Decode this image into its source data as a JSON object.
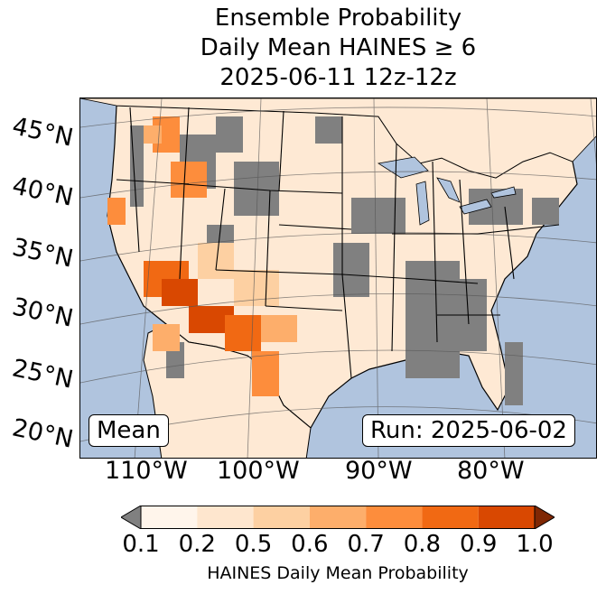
{
  "title": {
    "line1": "Ensemble Probability",
    "line2": "Daily Mean HAINES ≥ 6",
    "line3": "2025-06-11 12z-12z"
  },
  "map": {
    "projection": "lambert-conformal",
    "extent": {
      "lon_min": -120,
      "lon_max": -73,
      "lat_min": 22,
      "lat_max": 50
    },
    "colors": {
      "ocean": "#b0c4de",
      "land_low": "#808080",
      "background_land": "#fee9d4",
      "border": "#000000",
      "lakes": "#b0c4de"
    },
    "lat_labels": [
      "45°N",
      "40°N",
      "35°N",
      "30°N",
      "25°N",
      "20°N"
    ],
    "lon_labels": [
      "110°W",
      "100°W",
      "90°W",
      "80°W"
    ],
    "stat_label": "Mean",
    "run_label": "Run: 2025-06-02"
  },
  "colorbar": {
    "ticks": [
      "0.1",
      "0.2",
      "0.5",
      "0.6",
      "0.7",
      "0.8",
      "0.9",
      "1.0"
    ],
    "colors": [
      "#fff5eb",
      "#fee6ce",
      "#fdd0a2",
      "#fdae6b",
      "#fd8d3c",
      "#f16913",
      "#d94801",
      "#a63603"
    ],
    "under_color": "#808080",
    "over_color": "#7f2704",
    "label": "HAINES Daily Mean Probability"
  }
}
